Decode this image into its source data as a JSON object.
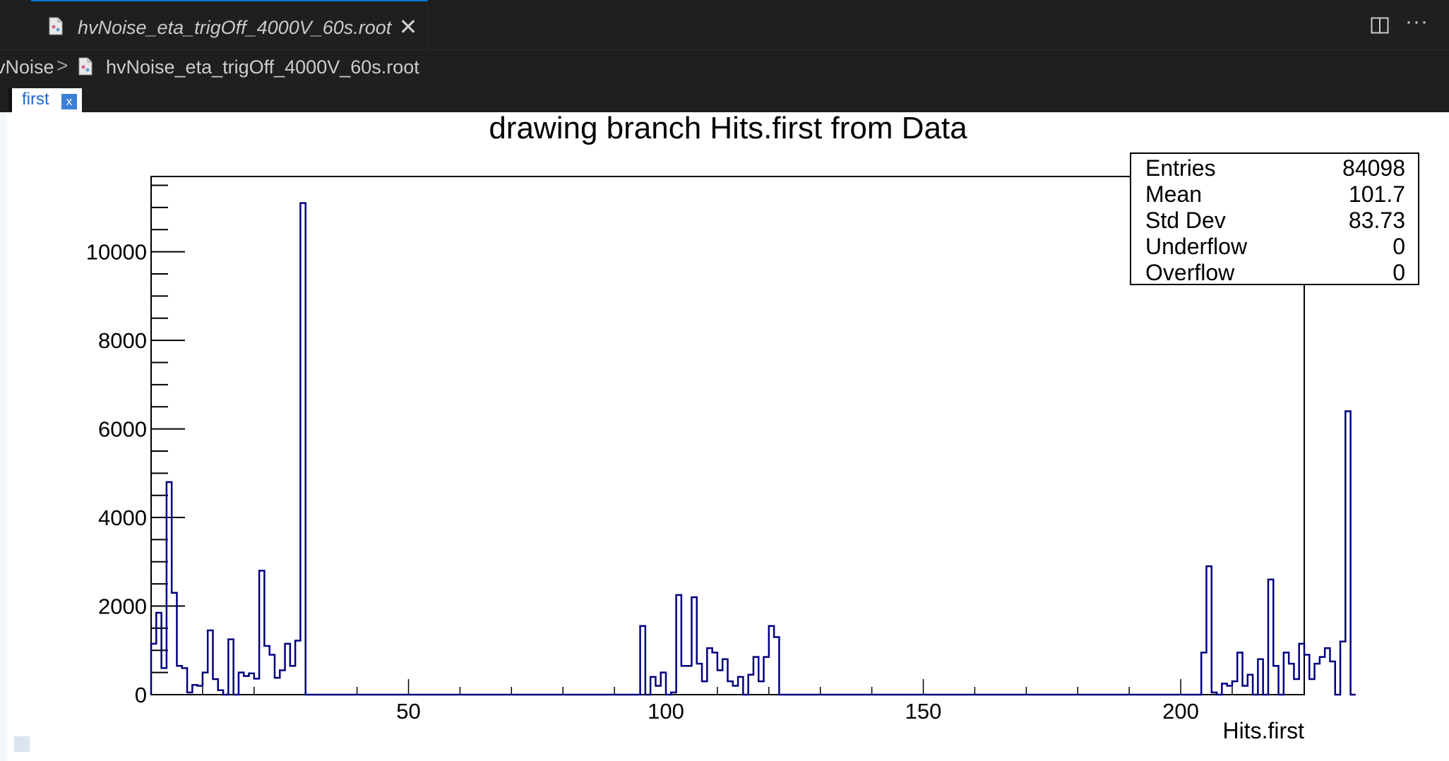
{
  "editor": {
    "tab_title": "hvNoise_eta_trigOff_4000V_60s.root",
    "tab_close": "✕",
    "split_icon": "split-editor-icon",
    "more_icon": "ellipsis-icon",
    "more_label": "···"
  },
  "breadcrumb": {
    "folder": "vNoise",
    "separator": ">",
    "file": "hvNoise_eta_trigOff_4000V_60s.root"
  },
  "root_canvas": {
    "tab_label": "first",
    "tab_close": "x"
  },
  "stats": {
    "rows": [
      {
        "label": "Entries",
        "value": "84098"
      },
      {
        "label": "Mean",
        "value": "101.7"
      },
      {
        "label": "Std Dev",
        "value": "83.73"
      },
      {
        "label": "Underflow",
        "value": "0"
      },
      {
        "label": "Overflow",
        "value": "0"
      }
    ]
  },
  "colors": {
    "histogram_line": "#000080",
    "editor_bg": "#1f1f1f",
    "accent": "#0078d4"
  },
  "chart_data": {
    "type": "bar",
    "title": "drawing branch Hits.first from Data",
    "xlabel": "Hits.first",
    "ylabel": "",
    "xlim": [
      0,
      224
    ],
    "ylim": [
      0,
      11700
    ],
    "bin_width": 1,
    "x_ticks": [
      50,
      100,
      150,
      200
    ],
    "x_tick_labels": [
      "50",
      "100",
      "150",
      "200"
    ],
    "y_ticks": [
      0,
      2000,
      4000,
      6000,
      8000,
      10000
    ],
    "y_tick_labels": [
      "0",
      "2000",
      "4000",
      "6000",
      "8000",
      "10000"
    ],
    "grid": false,
    "legend": "none",
    "series": [
      {
        "values": [
          1150,
          1850,
          600,
          4800,
          2300,
          650,
          600,
          50,
          220,
          200,
          500,
          1450,
          350,
          100,
          0,
          1250,
          0,
          500,
          420,
          480,
          360,
          2800,
          1100,
          900,
          380,
          550,
          1150,
          650,
          1220,
          11100,
          0,
          0,
          0,
          0,
          0,
          0,
          0,
          0,
          0,
          0,
          0,
          0,
          0,
          0,
          0,
          0,
          0,
          0,
          0,
          0,
          0,
          0,
          0,
          0,
          0,
          0,
          0,
          0,
          0,
          0,
          0,
          0,
          0,
          0,
          0,
          0,
          0,
          0,
          0,
          0,
          0,
          0,
          0,
          0,
          0,
          0,
          0,
          0,
          0,
          0,
          0,
          0,
          0,
          0,
          0,
          0,
          0,
          0,
          0,
          0,
          0,
          0,
          0,
          0,
          0,
          1550,
          0,
          400,
          200,
          500,
          0,
          50,
          2250,
          650,
          650,
          2200,
          700,
          300,
          1050,
          950,
          550,
          800,
          300,
          200,
          400,
          0,
          450,
          850,
          300,
          850,
          1550,
          1300,
          0,
          0,
          0,
          0,
          0,
          0,
          0,
          0,
          0,
          0,
          0,
          0,
          0,
          0,
          0,
          0,
          0,
          0,
          0,
          0,
          0,
          0,
          0,
          0,
          0,
          0,
          0,
          0,
          0,
          0,
          0,
          0,
          0,
          0,
          0,
          0,
          0,
          0,
          0,
          0,
          0,
          0,
          0,
          0,
          0,
          0,
          0,
          0,
          0,
          0,
          0,
          0,
          0,
          0,
          0,
          0,
          0,
          0,
          0,
          0,
          0,
          0,
          0,
          0,
          0,
          0,
          0,
          0,
          0,
          0,
          0,
          0,
          0,
          0,
          0,
          0,
          0,
          0,
          0,
          0,
          0,
          0,
          950,
          2900,
          50,
          0,
          250,
          200,
          300,
          950,
          200,
          450,
          0,
          800,
          0,
          2600,
          650,
          0,
          950,
          700,
          350,
          1150,
          900,
          350,
          700,
          850,
          1050,
          750,
          0,
          1200,
          6400,
          0
        ]
      }
    ]
  }
}
